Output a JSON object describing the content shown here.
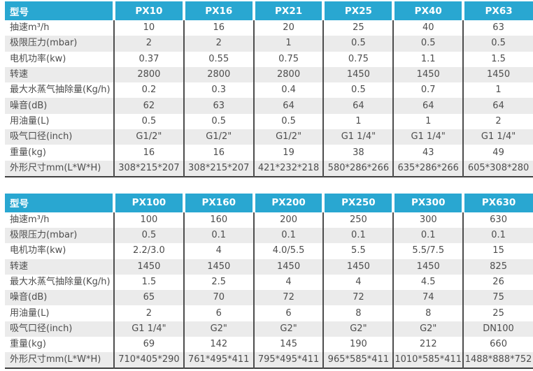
{
  "colors": {
    "header_bg": "#29a7d1",
    "header_text": "#ffffff",
    "row_alt_bg": "#ebebeb",
    "body_text": "#4d4d4d",
    "column_divider": "#4d4d4d",
    "table_bottom_border": "#404040"
  },
  "chart_data": [
    {
      "type": "table",
      "title": "",
      "header": {
        "label": "型号",
        "models": [
          "PX10",
          "PX16",
          "PX21",
          "PX25",
          "PX40",
          "PX63"
        ]
      },
      "rows": [
        {
          "label": "抽速m³/h",
          "values": [
            "10",
            "16",
            "20",
            "25",
            "40",
            "63"
          ]
        },
        {
          "label": "极限压力(mbar)",
          "values": [
            "2",
            "2",
            "1",
            "0.5",
            "0.5",
            "0.5"
          ]
        },
        {
          "label": "电机功率(kw)",
          "values": [
            "0.37",
            "0.55",
            "0.75",
            "0.75",
            "1.1",
            "1.5"
          ]
        },
        {
          "label": "转速",
          "values": [
            "2800",
            "2800",
            "2800",
            "1450",
            "1450",
            "1450"
          ]
        },
        {
          "label": "最大水蒸气抽除量(Kg/h)",
          "values": [
            "0.2",
            "0.3",
            "0.4",
            "0.5",
            "0.7",
            "1"
          ]
        },
        {
          "label": "噪音(dB)",
          "values": [
            "62",
            "63",
            "64",
            "64",
            "64",
            "64"
          ]
        },
        {
          "label": "用油量(L)",
          "values": [
            "0.5",
            "0.5",
            "0.5",
            "1",
            "1",
            "2"
          ]
        },
        {
          "label": "吸气口径(inch)",
          "values": [
            "G1/2\"",
            "G1/2\"",
            "G1/2\"",
            "G1 1/4\"",
            "G1 1/4\"",
            "G1 1/4\""
          ]
        },
        {
          "label": "重量(kg)",
          "values": [
            "16",
            "16",
            "19",
            "38",
            "43",
            "49"
          ]
        },
        {
          "label": "外形尺寸mm(L*W*H)",
          "values": [
            "308*215*207",
            "308*215*207",
            "421*232*218",
            "580*286*266",
            "635*286*266",
            "605*308*280"
          ]
        }
      ]
    },
    {
      "type": "table",
      "title": "",
      "header": {
        "label": "型号",
        "models": [
          "PX100",
          "PX160",
          "PX200",
          "PX250",
          "PX300",
          "PX630"
        ]
      },
      "rows": [
        {
          "label": "抽速m³/h",
          "values": [
            "100",
            "160",
            "200",
            "250",
            "300",
            "630"
          ]
        },
        {
          "label": "极限压力(mbar)",
          "values": [
            "0.5",
            "0.1",
            "0.1",
            "0.1",
            "0.1",
            "0.1"
          ]
        },
        {
          "label": "电机功率(kw)",
          "values": [
            "2.2/3.0",
            "4",
            "4.0/5.5",
            "5.5",
            "5.5/7.5",
            "15"
          ]
        },
        {
          "label": "转速",
          "values": [
            "1450",
            "1450",
            "1450",
            "1450",
            "1450",
            "825"
          ]
        },
        {
          "label": "最大水蒸气抽除量(Kg/h)",
          "values": [
            "1.5",
            "2.5",
            "4",
            "4",
            "4.5",
            "26"
          ]
        },
        {
          "label": "噪音(dB)",
          "values": [
            "65",
            "70",
            "72",
            "72",
            "74",
            "75"
          ]
        },
        {
          "label": "用油量(L)",
          "values": [
            "2",
            "6",
            "6",
            "8",
            "8",
            "25"
          ]
        },
        {
          "label": "吸气口径(inch)",
          "values": [
            "G1 1/4\"",
            "G2\"",
            "G2\"",
            "G2\"",
            "G2\"",
            "DN100"
          ]
        },
        {
          "label": "重量(kg)",
          "values": [
            "69",
            "142",
            "145",
            "190",
            "212",
            "660"
          ]
        },
        {
          "label": "外形尺寸mm(L*W*H)",
          "values": [
            "710*405*290",
            "761*495*411",
            "795*495*411",
            "965*585*411",
            "1010*585*411",
            "1488*888*752"
          ]
        }
      ]
    }
  ]
}
